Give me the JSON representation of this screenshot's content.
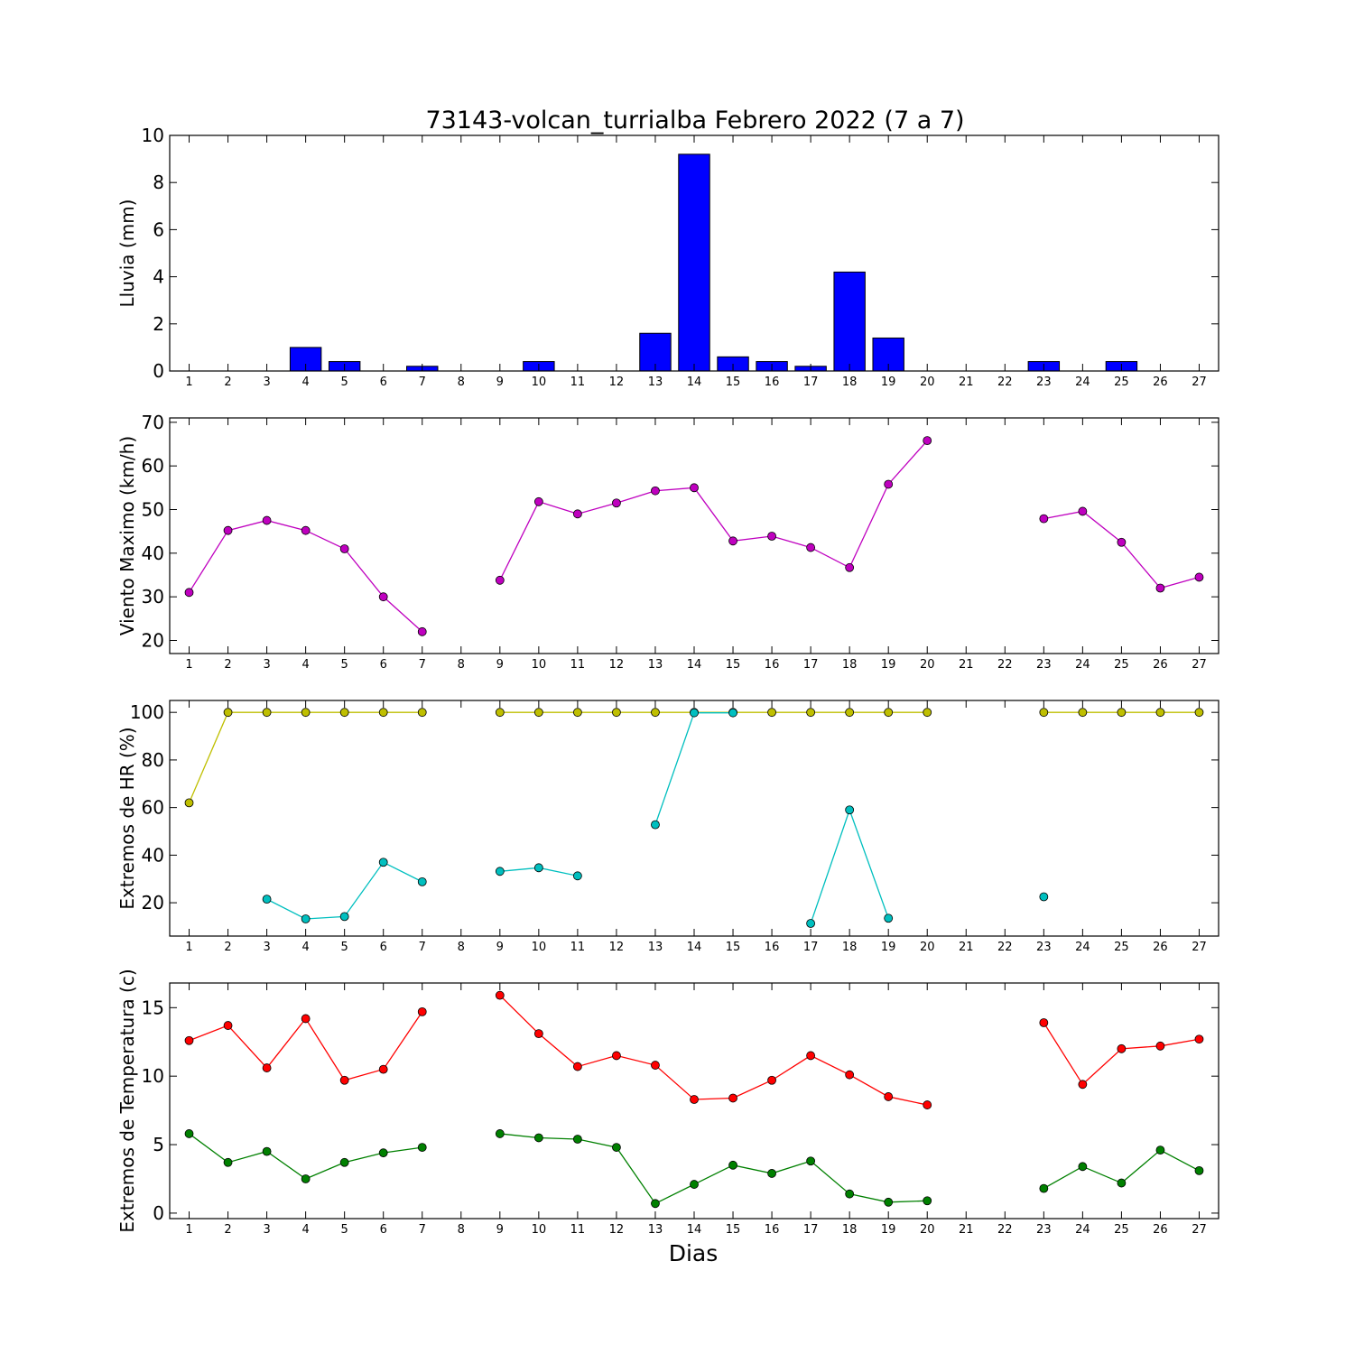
{
  "title": "73143-volcan_turrialba Febrero 2022  (7 a 7)",
  "xlabel": "Dias",
  "x_ticks": [
    1,
    2,
    3,
    4,
    5,
    6,
    7,
    8,
    9,
    10,
    11,
    12,
    13,
    14,
    15,
    16,
    17,
    18,
    19,
    20,
    21,
    22,
    23,
    24,
    25,
    26,
    27
  ],
  "chart_data": [
    {
      "type": "bar",
      "ylabel": "Lluvia (mm)",
      "ylim": [
        0,
        10
      ],
      "yticks": [
        0,
        2,
        4,
        6,
        8,
        10
      ],
      "color": "#0000ff",
      "categories": [
        1,
        2,
        3,
        4,
        5,
        6,
        7,
        8,
        9,
        10,
        11,
        12,
        13,
        14,
        15,
        16,
        17,
        18,
        19,
        20,
        21,
        22,
        23,
        24,
        25,
        26,
        27
      ],
      "values": [
        0,
        0,
        0,
        1.0,
        0.4,
        0,
        0.2,
        0,
        0,
        0.4,
        0,
        0,
        1.6,
        9.2,
        0.6,
        0.4,
        0.2,
        4.2,
        1.4,
        0,
        0,
        0,
        0.4,
        0,
        0.4,
        0,
        0
      ]
    },
    {
      "type": "line",
      "ylabel": "Viento Maximo (km/h)",
      "ylim": [
        17,
        71
      ],
      "yticks": [
        20,
        30,
        40,
        50,
        60,
        70
      ],
      "series": [
        {
          "color": "#bf00bf",
          "x": [
            1,
            2,
            3,
            4,
            5,
            6,
            7,
            8,
            9,
            10,
            11,
            12,
            13,
            14,
            15,
            16,
            17,
            18,
            19,
            20,
            21,
            22,
            23,
            24,
            25,
            26,
            27
          ],
          "values": [
            31.0,
            45.2,
            47.5,
            45.2,
            41.0,
            30.0,
            22.0,
            null,
            33.8,
            51.8,
            49.0,
            51.5,
            54.3,
            55.0,
            42.8,
            43.9,
            41.3,
            36.7,
            55.8,
            65.8,
            null,
            null,
            47.9,
            49.6,
            42.5,
            32.0,
            34.5
          ]
        }
      ]
    },
    {
      "type": "line",
      "ylabel": "Extremos de HR (%)",
      "ylim": [
        6,
        105
      ],
      "yticks": [
        20,
        40,
        60,
        80,
        100
      ],
      "series": [
        {
          "color": "#bfbf00",
          "x": [
            1,
            2,
            3,
            4,
            5,
            6,
            7,
            8,
            9,
            10,
            11,
            12,
            13,
            14,
            15,
            16,
            17,
            18,
            19,
            20,
            21,
            22,
            23,
            24,
            25,
            26,
            27
          ],
          "values": [
            62,
            100,
            100,
            100,
            100,
            100,
            100,
            null,
            100,
            100,
            100,
            100,
            100,
            100,
            100,
            100,
            100,
            100,
            100,
            100,
            null,
            null,
            100,
            100,
            100,
            100,
            100
          ]
        },
        {
          "color": "#00bfbf",
          "x": [
            1,
            2,
            3,
            4,
            5,
            6,
            7,
            8,
            9,
            10,
            11,
            12,
            13,
            14,
            15,
            16,
            17,
            18,
            19,
            20,
            21,
            22,
            23,
            24,
            25,
            26,
            27
          ],
          "values": [
            null,
            null,
            21.5,
            13.2,
            14.2,
            37.0,
            28.8,
            null,
            33.2,
            34.7,
            31.3,
            null,
            52.8,
            99.8,
            99.8,
            null,
            11.3,
            59.0,
            13.5,
            null,
            null,
            null,
            22.5,
            null,
            null,
            null,
            null
          ]
        }
      ]
    },
    {
      "type": "line",
      "ylabel": "Extremos de Temperatura (c)",
      "ylim": [
        -0.4,
        16.8
      ],
      "yticks": [
        0,
        5,
        10,
        15
      ],
      "series": [
        {
          "color": "#ff0000",
          "x": [
            1,
            2,
            3,
            4,
            5,
            6,
            7,
            8,
            9,
            10,
            11,
            12,
            13,
            14,
            15,
            16,
            17,
            18,
            19,
            20,
            21,
            22,
            23,
            24,
            25,
            26,
            27
          ],
          "values": [
            12.6,
            13.7,
            10.6,
            14.2,
            9.7,
            10.5,
            14.7,
            null,
            15.9,
            13.1,
            10.7,
            11.5,
            10.8,
            8.3,
            8.4,
            9.7,
            11.5,
            10.1,
            8.5,
            7.9,
            null,
            null,
            13.9,
            9.4,
            12.0,
            12.2,
            12.7
          ]
        },
        {
          "color": "#008000",
          "x": [
            1,
            2,
            3,
            4,
            5,
            6,
            7,
            8,
            9,
            10,
            11,
            12,
            13,
            14,
            15,
            16,
            17,
            18,
            19,
            20,
            21,
            22,
            23,
            24,
            25,
            26,
            27
          ],
          "values": [
            5.8,
            3.7,
            4.5,
            2.5,
            3.7,
            4.4,
            4.8,
            null,
            5.8,
            5.5,
            5.4,
            4.8,
            0.7,
            2.1,
            3.5,
            2.9,
            3.8,
            1.4,
            0.8,
            0.9,
            null,
            null,
            1.8,
            3.4,
            2.2,
            4.6,
            3.1
          ]
        }
      ]
    }
  ]
}
